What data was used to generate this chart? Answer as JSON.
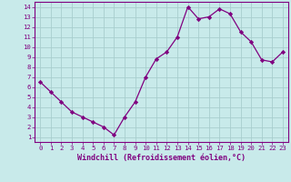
{
  "x": [
    0,
    1,
    2,
    3,
    4,
    5,
    6,
    7,
    8,
    9,
    10,
    11,
    12,
    13,
    14,
    15,
    16,
    17,
    18,
    19,
    20,
    21,
    22,
    23
  ],
  "y": [
    6.5,
    5.5,
    4.5,
    3.5,
    3.0,
    2.5,
    2.0,
    1.2,
    3.0,
    4.5,
    7.0,
    8.8,
    9.5,
    11.0,
    14.0,
    12.8,
    13.0,
    13.8,
    13.3,
    11.5,
    10.5,
    8.7,
    8.5,
    9.5
  ],
  "line_color": "#800080",
  "marker": "D",
  "marker_size": 2.2,
  "bg_color": "#c8eaea",
  "grid_color": "#a8cece",
  "xlabel": "Windchill (Refroidissement éolien,°C)",
  "xlim": [
    -0.5,
    23.5
  ],
  "ylim": [
    0.5,
    14.5
  ],
  "xticks": [
    0,
    1,
    2,
    3,
    4,
    5,
    6,
    7,
    8,
    9,
    10,
    11,
    12,
    13,
    14,
    15,
    16,
    17,
    18,
    19,
    20,
    21,
    22,
    23
  ],
  "yticks": [
    1,
    2,
    3,
    4,
    5,
    6,
    7,
    8,
    9,
    10,
    11,
    12,
    13,
    14
  ],
  "tick_color": "#800080",
  "axis_color": "#800080",
  "font_color": "#800080",
  "label_fontsize": 6.0,
  "tick_fontsize": 5.2
}
